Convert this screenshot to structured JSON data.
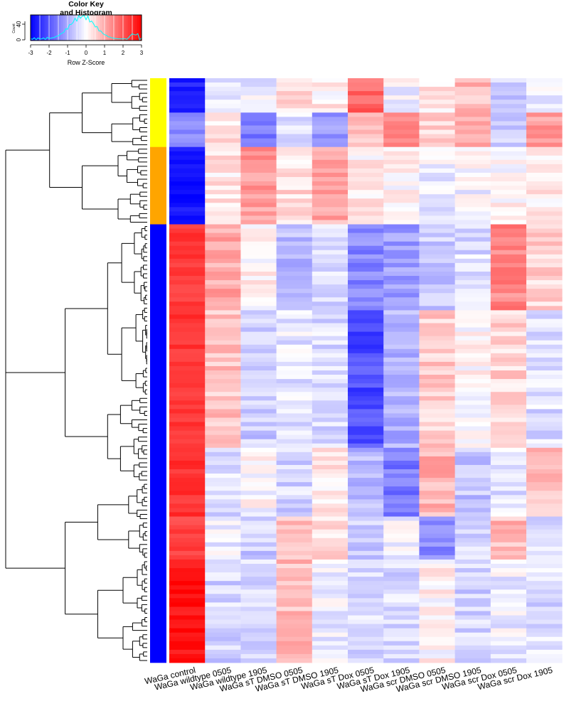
{
  "colorkey": {
    "title_line1": "Color Key",
    "title_line2": "and Histogram",
    "xlabel": "Row Z-Score",
    "ylabel": "Count",
    "xticks": [
      "-3",
      "-2",
      "-1",
      "0",
      "1",
      "2",
      "3"
    ],
    "ytick_labels": [
      "0",
      "40"
    ],
    "colors": {
      "low": "#0000ff",
      "mid": "#ffffff",
      "high": "#ff0000",
      "histogram": "#00ffff"
    }
  },
  "chart_data": {
    "type": "heatmap",
    "columns": [
      "WaGa control",
      "WaGa wildtype 0505",
      "WaGa wildtype 1905",
      "WaGa sT DMSO 0505",
      "WaGa sT DMSO 1905",
      "WaGa sT Dox 0505",
      "WaGa sT Dox 1905",
      "WaGa scr DMSO 0505",
      "WaGa scr DMSO 1905",
      "WaGa scr Dox 0505",
      "WaGa scr Dox 1905"
    ],
    "value_range": [
      -3,
      3
    ],
    "row_groups": [
      {
        "color": "#ffff00",
        "rows": 16
      },
      {
        "color": "#ffa500",
        "rows": 18
      },
      {
        "color": "#0000ff",
        "rows": 102
      }
    ],
    "block_profiles": [
      {
        "rows": 8,
        "z": [
          -2.6,
          -0.3,
          -0.2,
          0.4,
          0.2,
          1.8,
          -0.1,
          0.3,
          0.8,
          -0.6,
          -0.3
        ]
      },
      {
        "rows": 8,
        "z": [
          -1.4,
          0.4,
          -1.6,
          -0.3,
          -1.1,
          0.6,
          1.3,
          0.5,
          1.1,
          -0.7,
          1.2
        ]
      },
      {
        "rows": 18,
        "z": [
          -2.8,
          0.3,
          1.2,
          0.4,
          1.0,
          0.2,
          0.1,
          -0.2,
          -0.1,
          0.1,
          0.2
        ]
      },
      {
        "rows": 20,
        "z": [
          2.3,
          1.0,
          0.1,
          -0.8,
          -0.4,
          -1.4,
          -1.2,
          -0.6,
          -0.4,
          1.4,
          0.5
        ]
      },
      {
        "rows": 32,
        "z": [
          2.4,
          0.7,
          -0.6,
          -0.3,
          -0.4,
          -2.1,
          -0.9,
          0.6,
          0.1,
          0.5,
          -0.4
        ]
      },
      {
        "rows": 16,
        "z": [
          2.4,
          -0.4,
          0.0,
          -0.5,
          0.3,
          -0.8,
          -1.6,
          0.9,
          -0.7,
          -0.3,
          0.8
        ]
      },
      {
        "rows": 10,
        "z": [
          2.2,
          -0.2,
          -0.6,
          0.7,
          0.4,
          -0.6,
          -0.1,
          -1.3,
          -0.5,
          0.8,
          -0.4
        ]
      },
      {
        "rows": 24,
        "z": [
          2.8,
          -0.5,
          -0.4,
          0.8,
          -0.2,
          -0.4,
          -0.4,
          0.1,
          -0.5,
          -0.2,
          -0.4
        ]
      }
    ]
  }
}
